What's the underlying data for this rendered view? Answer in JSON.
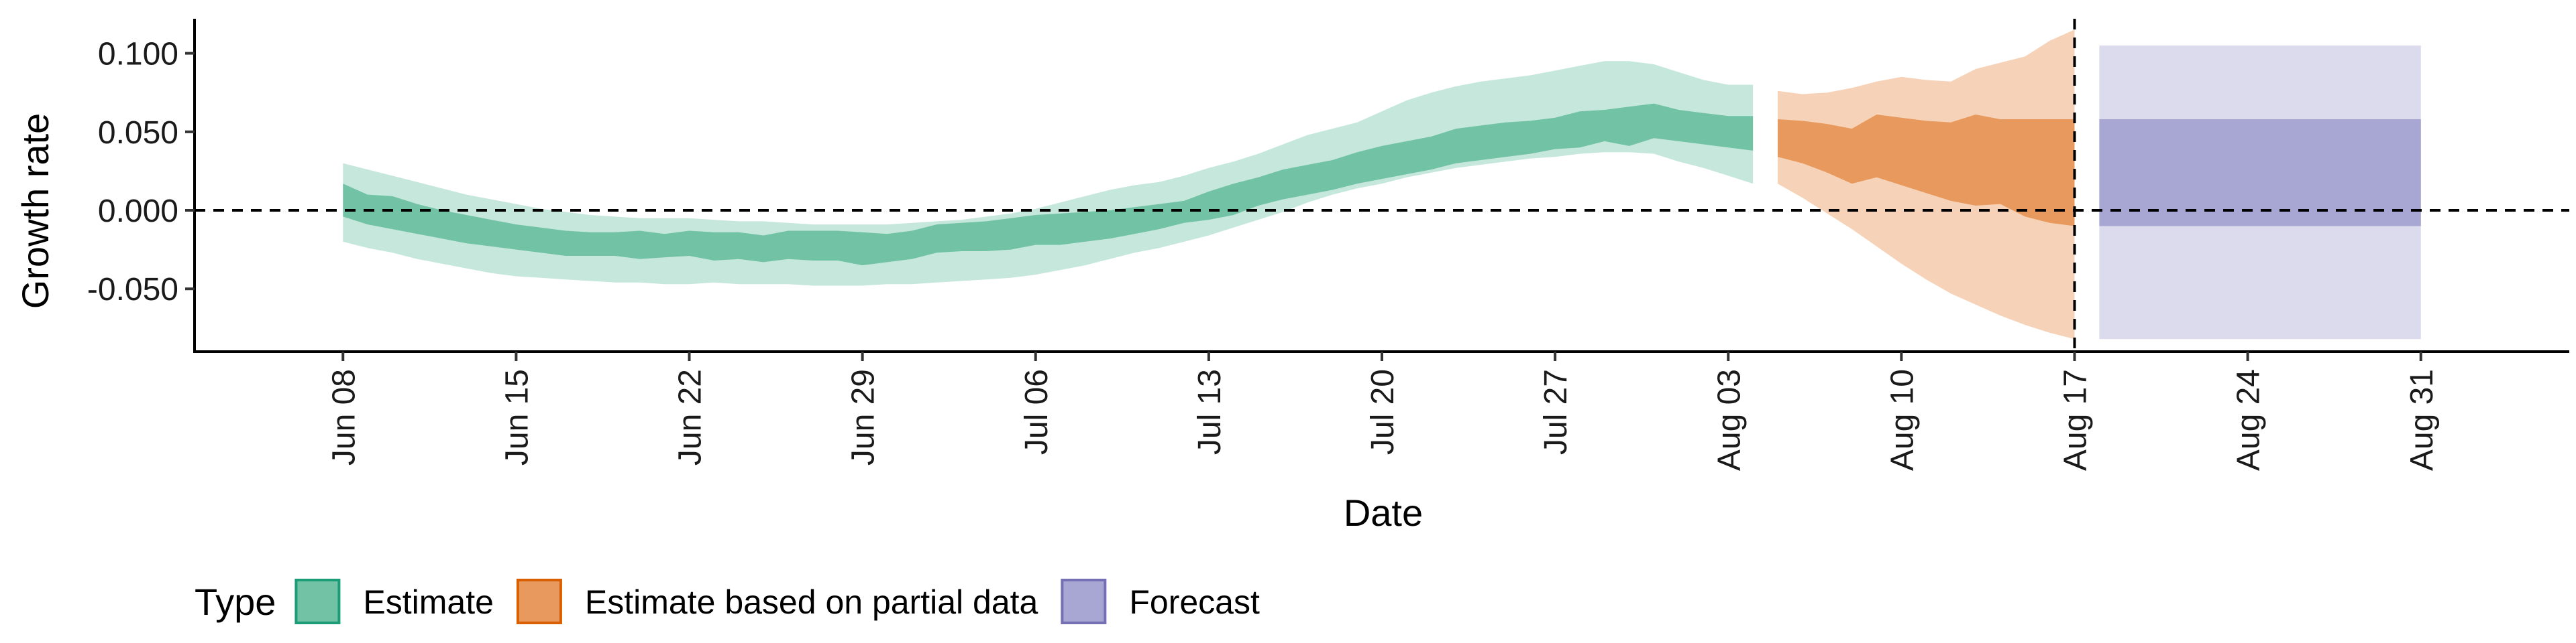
{
  "chart_data": {
    "type": "area",
    "title": "",
    "xlabel": "Date",
    "ylabel": "Growth rate",
    "xlim": [
      "2020-06-02",
      "2020-09-06"
    ],
    "ylim": [
      -0.09,
      0.122
    ],
    "y_ticks": [
      -0.05,
      0.0,
      0.05,
      0.1
    ],
    "y_tick_labels": [
      "-0.050",
      "0.000",
      "0.050",
      "0.100"
    ],
    "x_ticks": [
      "2020-06-08",
      "2020-06-15",
      "2020-06-22",
      "2020-06-29",
      "2020-07-06",
      "2020-07-13",
      "2020-07-20",
      "2020-07-27",
      "2020-08-03",
      "2020-08-10",
      "2020-08-17",
      "2020-08-24",
      "2020-08-31"
    ],
    "x_tick_labels": [
      "Jun 08",
      "Jun 15",
      "Jun 22",
      "Jun 29",
      "Jul 06",
      "Jul 13",
      "Jul 20",
      "Jul 27",
      "Aug 03",
      "Aug 10",
      "Aug 17",
      "Aug 24",
      "Aug 31"
    ],
    "reference_lines": {
      "horizontal_y": 0.0,
      "vertical_x": "2020-08-17"
    },
    "grid": false,
    "legend": {
      "title": "Type",
      "position": "bottom-left",
      "entries": [
        {
          "label": "Estimate",
          "fill": "#72c3a6",
          "stroke": "#1b9e77"
        },
        {
          "label": "Estimate based on partial data",
          "fill": "#e89a5e",
          "stroke": "#d95f02"
        },
        {
          "label": "Forecast",
          "fill": "#a8a6d2",
          "stroke": "#7570b3"
        }
      ]
    },
    "series": [
      {
        "name": "Estimate",
        "colors": {
          "outer": "#c6e7dc",
          "inner": "#72c3a6"
        },
        "x": [
          "2020-06-08",
          "2020-06-09",
          "2020-06-10",
          "2020-06-11",
          "2020-06-12",
          "2020-06-13",
          "2020-06-14",
          "2020-06-15",
          "2020-06-16",
          "2020-06-17",
          "2020-06-18",
          "2020-06-19",
          "2020-06-20",
          "2020-06-21",
          "2020-06-22",
          "2020-06-23",
          "2020-06-24",
          "2020-06-25",
          "2020-06-26",
          "2020-06-27",
          "2020-06-28",
          "2020-06-29",
          "2020-06-30",
          "2020-07-01",
          "2020-07-02",
          "2020-07-03",
          "2020-07-04",
          "2020-07-05",
          "2020-07-06",
          "2020-07-07",
          "2020-07-08",
          "2020-07-09",
          "2020-07-10",
          "2020-07-11",
          "2020-07-12",
          "2020-07-13",
          "2020-07-14",
          "2020-07-15",
          "2020-07-16",
          "2020-07-17",
          "2020-07-18",
          "2020-07-19",
          "2020-07-20",
          "2020-07-21",
          "2020-07-22",
          "2020-07-23",
          "2020-07-24",
          "2020-07-25",
          "2020-07-26",
          "2020-07-27",
          "2020-07-28",
          "2020-07-29",
          "2020-07-30",
          "2020-07-31",
          "2020-08-01",
          "2020-08-02",
          "2020-08-03",
          "2020-08-04"
        ],
        "upper_90": [
          0.03,
          0.026,
          0.022,
          0.018,
          0.014,
          0.01,
          0.007,
          0.004,
          0.001,
          -0.001,
          -0.003,
          -0.004,
          -0.005,
          -0.005,
          -0.005,
          -0.006,
          -0.007,
          -0.007,
          -0.008,
          -0.009,
          -0.009,
          -0.009,
          -0.009,
          -0.008,
          -0.007,
          -0.006,
          -0.004,
          -0.002,
          0.001,
          0.005,
          0.009,
          0.013,
          0.016,
          0.018,
          0.022,
          0.027,
          0.031,
          0.036,
          0.042,
          0.048,
          0.052,
          0.056,
          0.063,
          0.07,
          0.075,
          0.079,
          0.082,
          0.084,
          0.086,
          0.089,
          0.092,
          0.095,
          0.095,
          0.093,
          0.088,
          0.083,
          0.08,
          0.08
        ],
        "upper_50": [
          0.017,
          0.01,
          0.009,
          0.004,
          0.0,
          -0.003,
          -0.006,
          -0.009,
          -0.011,
          -0.013,
          -0.014,
          -0.014,
          -0.013,
          -0.015,
          -0.013,
          -0.014,
          -0.014,
          -0.016,
          -0.013,
          -0.013,
          -0.013,
          -0.014,
          -0.015,
          -0.013,
          -0.009,
          -0.008,
          -0.007,
          -0.005,
          -0.003,
          -0.002,
          -0.001,
          0.0,
          0.002,
          0.004,
          0.006,
          0.012,
          0.017,
          0.021,
          0.026,
          0.029,
          0.032,
          0.037,
          0.041,
          0.044,
          0.047,
          0.052,
          0.054,
          0.056,
          0.057,
          0.059,
          0.063,
          0.064,
          0.066,
          0.068,
          0.064,
          0.062,
          0.06,
          0.06
        ],
        "lower_50": [
          -0.004,
          -0.009,
          -0.012,
          -0.015,
          -0.018,
          -0.021,
          -0.023,
          -0.025,
          -0.027,
          -0.029,
          -0.029,
          -0.029,
          -0.031,
          -0.03,
          -0.029,
          -0.032,
          -0.031,
          -0.033,
          -0.031,
          -0.032,
          -0.032,
          -0.035,
          -0.033,
          -0.031,
          -0.027,
          -0.026,
          -0.026,
          -0.025,
          -0.022,
          -0.022,
          -0.02,
          -0.018,
          -0.015,
          -0.012,
          -0.008,
          -0.006,
          -0.003,
          0.003,
          0.007,
          0.01,
          0.013,
          0.017,
          0.02,
          0.023,
          0.026,
          0.03,
          0.032,
          0.034,
          0.036,
          0.039,
          0.04,
          0.044,
          0.041,
          0.046,
          0.044,
          0.042,
          0.04,
          0.038
        ],
        "lower_90": [
          -0.02,
          -0.024,
          -0.027,
          -0.031,
          -0.034,
          -0.037,
          -0.04,
          -0.042,
          -0.043,
          -0.044,
          -0.045,
          -0.046,
          -0.046,
          -0.047,
          -0.047,
          -0.046,
          -0.047,
          -0.047,
          -0.047,
          -0.048,
          -0.048,
          -0.048,
          -0.047,
          -0.047,
          -0.046,
          -0.045,
          -0.044,
          -0.043,
          -0.041,
          -0.038,
          -0.035,
          -0.031,
          -0.027,
          -0.024,
          -0.02,
          -0.016,
          -0.011,
          -0.006,
          -0.001,
          0.005,
          0.01,
          0.014,
          0.017,
          0.021,
          0.024,
          0.027,
          0.029,
          0.031,
          0.033,
          0.034,
          0.036,
          0.037,
          0.037,
          0.036,
          0.031,
          0.027,
          0.022,
          0.017
        ]
      },
      {
        "name": "Estimate based on partial data",
        "colors": {
          "outer": "#f6d3b8",
          "inner": "#e89a5e"
        },
        "x": [
          "2020-08-05",
          "2020-08-06",
          "2020-08-07",
          "2020-08-08",
          "2020-08-09",
          "2020-08-10",
          "2020-08-11",
          "2020-08-12",
          "2020-08-13",
          "2020-08-14",
          "2020-08-15",
          "2020-08-16",
          "2020-08-17"
        ],
        "upper_90": [
          0.076,
          0.074,
          0.075,
          0.078,
          0.082,
          0.085,
          0.083,
          0.082,
          0.09,
          0.094,
          0.098,
          0.108,
          0.115
        ],
        "upper_50": [
          0.058,
          0.057,
          0.055,
          0.052,
          0.061,
          0.059,
          0.057,
          0.056,
          0.061,
          0.058,
          0.058,
          0.058,
          0.058
        ],
        "lower_50": [
          0.034,
          0.03,
          0.024,
          0.017,
          0.021,
          0.016,
          0.011,
          0.006,
          0.003,
          0.004,
          -0.004,
          -0.008,
          -0.01
        ],
        "lower_90": [
          0.017,
          0.008,
          -0.002,
          -0.012,
          -0.023,
          -0.034,
          -0.044,
          -0.053,
          -0.06,
          -0.067,
          -0.073,
          -0.078,
          -0.082
        ]
      },
      {
        "name": "Forecast",
        "colors": {
          "outer": "#dcdbee",
          "inner": "#a8a6d2"
        },
        "x": [
          "2020-08-18",
          "2020-08-31"
        ],
        "upper_90": [
          0.105,
          0.105
        ],
        "upper_50": [
          0.058,
          0.058
        ],
        "lower_50": [
          -0.01,
          -0.01
        ],
        "lower_90": [
          -0.082,
          -0.082
        ]
      }
    ]
  }
}
